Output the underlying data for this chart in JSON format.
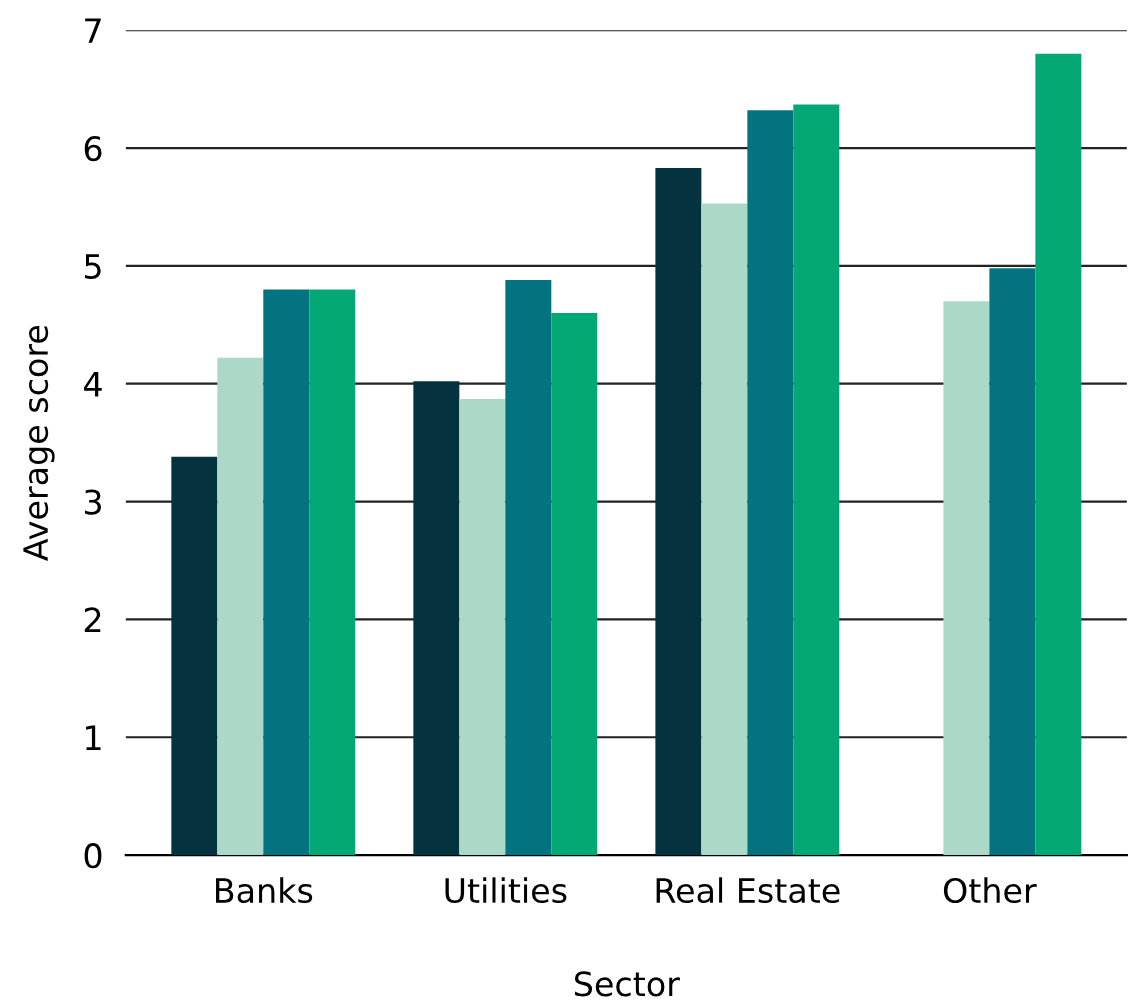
{
  "chart_data": {
    "type": "bar",
    "xlabel": "Sector",
    "ylabel": "Average score",
    "categories": [
      "Banks",
      "Utilities",
      "Real Estate",
      "Other"
    ],
    "series": [
      {
        "color": "#04333f",
        "values": [
          3.38,
          4.02,
          5.83,
          null
        ]
      },
      {
        "color": "#acd8c8",
        "values": [
          4.22,
          3.87,
          5.53,
          4.7
        ]
      },
      {
        "color": "#047380",
        "values": [
          4.8,
          4.88,
          6.32,
          4.98
        ]
      },
      {
        "color": "#04a874",
        "values": [
          4.8,
          4.6,
          6.37,
          6.8
        ]
      }
    ],
    "ylim": [
      0,
      7
    ],
    "yticks": [
      0,
      1,
      2,
      3,
      4,
      5,
      6,
      7
    ],
    "grid": "y",
    "legend": false
  }
}
